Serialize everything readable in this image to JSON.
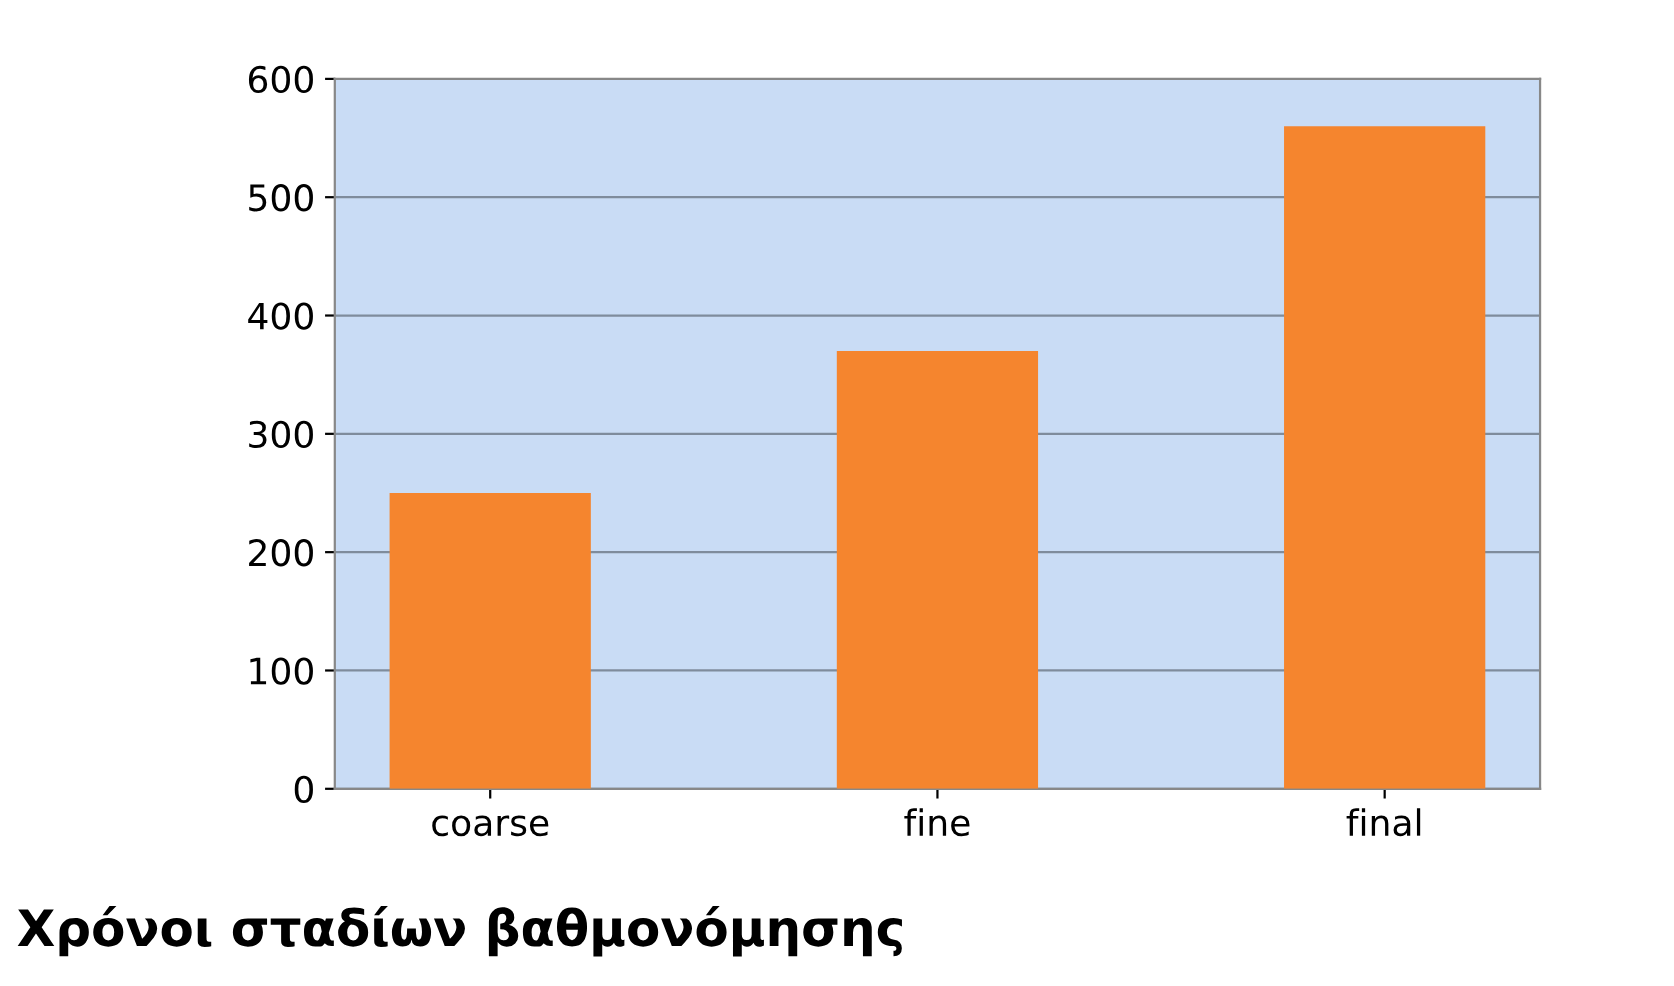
{
  "chart_data": {
    "type": "bar",
    "title": "Χρόνοι σταδίων βαθμονόμησης",
    "categories": [
      "coarse",
      "fine",
      "final"
    ],
    "values": [
      250,
      370,
      560
    ],
    "color": "#f5852e",
    "ylim": [
      0,
      600
    ],
    "yticks": [
      0,
      100,
      200,
      300,
      400,
      500,
      600
    ],
    "grid": "y"
  }
}
